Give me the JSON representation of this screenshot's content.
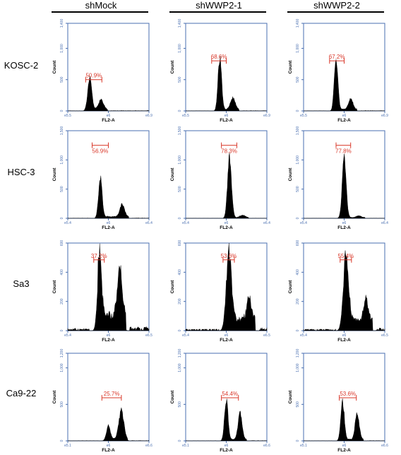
{
  "figure": {
    "columns": [
      "shMock",
      "shWWP2-1",
      "shWWP2-2"
    ],
    "rows": [
      "KOSC-2",
      "HSC-3",
      "Sa3",
      "Ca9-22"
    ]
  },
  "chart_data": [
    {
      "type": "area",
      "row": "KOSC-2",
      "column": "shMock",
      "xlabel": "FL2-A",
      "ylabel": "Count",
      "y_ticks": [
        "0",
        "500",
        "1,000",
        "1,400"
      ],
      "ylim": [
        0,
        1400
      ],
      "x_ticks": [
        "e5.5",
        "e6",
        "e6.9"
      ],
      "gate_label": "50.9%",
      "gate_range": [
        0.22,
        0.42
      ],
      "gate_y": 500,
      "peaks": [
        {
          "x": 0.27,
          "y": 480,
          "w": 0.025
        },
        {
          "x": 0.41,
          "y": 150,
          "w": 0.03
        }
      ],
      "baseline": 30
    },
    {
      "type": "area",
      "row": "KOSC-2",
      "column": "shWWP2-1",
      "xlabel": "FL2-A",
      "ylabel": "Count",
      "y_ticks": [
        "0",
        "500",
        "1,000",
        "1,400"
      ],
      "ylim": [
        0,
        1400
      ],
      "x_ticks": [
        "e5.5",
        "e6",
        "e6.9"
      ],
      "gate_label": "68.6%",
      "gate_range": [
        0.32,
        0.5
      ],
      "gate_y": 800,
      "peaks": [
        {
          "x": 0.42,
          "y": 810,
          "w": 0.022
        },
        {
          "x": 0.58,
          "y": 190,
          "w": 0.028
        }
      ],
      "baseline": 25
    },
    {
      "type": "area",
      "row": "KOSC-2",
      "column": "shWWP2-2",
      "xlabel": "FL2-A",
      "ylabel": "Count",
      "y_ticks": [
        "0",
        "500",
        "1,000",
        "1,400"
      ],
      "ylim": [
        0,
        1400
      ],
      "x_ticks": [
        "e5.5",
        "e6",
        "e6.9"
      ],
      "gate_label": "67.2%",
      "gate_range": [
        0.32,
        0.5
      ],
      "gate_y": 800,
      "peaks": [
        {
          "x": 0.4,
          "y": 810,
          "w": 0.022
        },
        {
          "x": 0.58,
          "y": 170,
          "w": 0.028
        }
      ],
      "baseline": 25
    },
    {
      "type": "area",
      "row": "HSC-3",
      "column": "shMock",
      "xlabel": "FL2-A",
      "ylabel": "Count",
      "y_ticks": [
        "0",
        "500",
        "1,000",
        "1,500"
      ],
      "ylim": [
        0,
        1500
      ],
      "x_ticks": [
        "e5.4",
        "e6",
        "e6.4"
      ],
      "gate_label": "56.9%",
      "gate_range": [
        0.3,
        0.5
      ],
      "gate_y": 1250,
      "peaks": [
        {
          "x": 0.4,
          "y": 680,
          "w": 0.022
        },
        {
          "x": 0.67,
          "y": 220,
          "w": 0.028
        }
      ],
      "baseline": 30
    },
    {
      "type": "area",
      "row": "HSC-3",
      "column": "shWWP2-1",
      "xlabel": "FL2-A",
      "ylabel": "Count",
      "y_ticks": [
        "0",
        "500",
        "1,000",
        "1,500"
      ],
      "ylim": [
        0,
        1500
      ],
      "x_ticks": [
        "e5.4",
        "e6",
        "e6.4"
      ],
      "gate_label": "78.3%",
      "gate_range": [
        0.44,
        0.63
      ],
      "gate_y": 1250,
      "peaks": [
        {
          "x": 0.54,
          "y": 1040,
          "w": 0.024
        },
        {
          "x": 0.7,
          "y": 40,
          "w": 0.03
        }
      ],
      "baseline": 15
    },
    {
      "type": "area",
      "row": "HSC-3",
      "column": "shWWP2-2",
      "xlabel": "FL2-A",
      "ylabel": "Count",
      "y_ticks": [
        "0",
        "500",
        "1,000",
        "1,500"
      ],
      "ylim": [
        0,
        1500
      ],
      "x_ticks": [
        "e5.4",
        "e6",
        "e6.4"
      ],
      "gate_label": "77.8%",
      "gate_range": [
        0.4,
        0.58
      ],
      "gate_y": 1250,
      "peaks": [
        {
          "x": 0.5,
          "y": 1020,
          "w": 0.024
        },
        {
          "x": 0.68,
          "y": 30,
          "w": 0.03
        }
      ],
      "baseline": 15
    },
    {
      "type": "area",
      "row": "Sa3",
      "column": "shMock",
      "xlabel": "FL2-A",
      "ylabel": "Count",
      "y_ticks": [
        "0",
        "200",
        "400",
        "600"
      ],
      "ylim": [
        0,
        600
      ],
      "x_ticks": [
        "e5.4",
        "e6",
        "e6.5"
      ],
      "gate_label": "37.2%",
      "gate_range": [
        0.32,
        0.45
      ],
      "gate_y": 485,
      "peaks": [
        {
          "x": 0.39,
          "y": 430,
          "w": 0.025
        },
        {
          "x": 0.64,
          "y": 330,
          "w": 0.028
        }
      ],
      "baseline": 110
    },
    {
      "type": "area",
      "row": "Sa3",
      "column": "shWWP2-1",
      "xlabel": "FL2-A",
      "ylabel": "Count",
      "y_ticks": [
        "0",
        "200",
        "400",
        "600"
      ],
      "ylim": [
        0,
        600
      ],
      "x_ticks": [
        "e5.4",
        "e6",
        "e6.5"
      ],
      "gate_label": "53.6%",
      "gate_range": [
        0.46,
        0.6
      ],
      "gate_y": 485,
      "peaks": [
        {
          "x": 0.53,
          "y": 490,
          "w": 0.032
        },
        {
          "x": 0.78,
          "y": 140,
          "w": 0.028
        }
      ],
      "baseline": 80
    },
    {
      "type": "area",
      "row": "Sa3",
      "column": "shWWP2-2",
      "xlabel": "FL2-A",
      "ylabel": "Count",
      "y_ticks": [
        "0",
        "200",
        "400",
        "600"
      ],
      "ylim": [
        0,
        600
      ],
      "x_ticks": [
        "e5.4",
        "e6",
        "e6.5"
      ],
      "gate_label": "55.4%",
      "gate_range": [
        0.45,
        0.59
      ],
      "gate_y": 485,
      "peaks": [
        {
          "x": 0.52,
          "y": 470,
          "w": 0.032
        },
        {
          "x": 0.77,
          "y": 140,
          "w": 0.028
        }
      ],
      "baseline": 75
    },
    {
      "type": "area",
      "row": "Ca9-22",
      "column": "shMock",
      "xlabel": "FL2-A",
      "ylabel": "Count",
      "y_ticks": [
        "0",
        "500",
        "1,000",
        "1,200"
      ],
      "ylim": [
        0,
        1200
      ],
      "x_ticks": [
        "e5.1",
        "e6",
        "e6.6"
      ],
      "gate_label": "25.7%",
      "gate_range": [
        0.42,
        0.66
      ],
      "gate_y": 590,
      "peaks": [
        {
          "x": 0.5,
          "y": 180,
          "w": 0.025
        },
        {
          "x": 0.66,
          "y": 400,
          "w": 0.03
        }
      ],
      "baseline": 25
    },
    {
      "type": "area",
      "row": "Ca9-22",
      "column": "shWWP2-1",
      "xlabel": "FL2-A",
      "ylabel": "Count",
      "y_ticks": [
        "0",
        "500",
        "1,000",
        "1,200"
      ],
      "ylim": [
        0,
        1200
      ],
      "x_ticks": [
        "e5.1",
        "e6",
        "e6.6"
      ],
      "gate_label": "54.4%",
      "gate_range": [
        0.44,
        0.65
      ],
      "gate_y": 590,
      "peaks": [
        {
          "x": 0.5,
          "y": 540,
          "w": 0.022
        },
        {
          "x": 0.67,
          "y": 360,
          "w": 0.025
        }
      ],
      "baseline": 20
    },
    {
      "type": "area",
      "row": "Ca9-22",
      "column": "shWWP2-2",
      "xlabel": "FL2-A",
      "ylabel": "Count",
      "y_ticks": [
        "0",
        "500",
        "1,000",
        "1,200"
      ],
      "ylim": [
        0,
        1200
      ],
      "x_ticks": [
        "e5.1",
        "e6",
        "e6.6"
      ],
      "gate_label": "53.6%",
      "gate_range": [
        0.44,
        0.65
      ],
      "gate_y": 590,
      "peaks": [
        {
          "x": 0.48,
          "y": 520,
          "w": 0.022
        },
        {
          "x": 0.66,
          "y": 350,
          "w": 0.025
        }
      ],
      "baseline": 20
    }
  ]
}
